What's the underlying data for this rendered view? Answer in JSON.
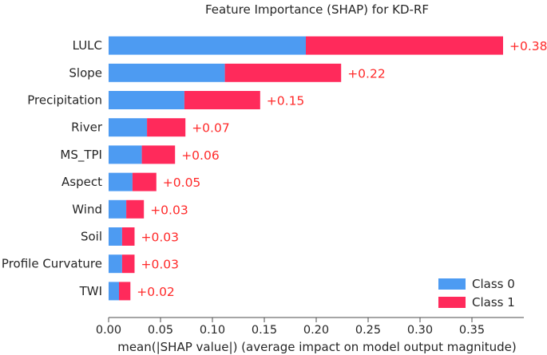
{
  "chart_data": {
    "type": "bar",
    "orientation": "horizontal",
    "stacked": true,
    "title": "Feature Importance (SHAP) for KD-RF",
    "xlabel": "mean(|SHAP value|) (average impact on model output magnitude)",
    "ylabel": "",
    "xlim": [
      0,
      0.4
    ],
    "xticks": [
      "0.00",
      "0.05",
      "0.10",
      "0.15",
      "0.20",
      "0.25",
      "0.30",
      "0.35"
    ],
    "categories": [
      "LULC",
      "Slope",
      "Precipitation",
      "River",
      "MS_TPI",
      "Aspect",
      "Wind",
      "Soil",
      "Profile Curvature",
      "TWI"
    ],
    "series": [
      {
        "name": "Class 0",
        "color": "#4d9bf2",
        "values": [
          0.19,
          0.112,
          0.073,
          0.037,
          0.032,
          0.023,
          0.017,
          0.013,
          0.013,
          0.01
        ]
      },
      {
        "name": "Class 1",
        "color": "#ff2a5b",
        "values": [
          0.19,
          0.112,
          0.073,
          0.037,
          0.032,
          0.023,
          0.017,
          0.012,
          0.012,
          0.011
        ]
      }
    ],
    "data_labels": [
      "+0.38",
      "+0.22",
      "+0.15",
      "+0.07",
      "+0.06",
      "+0.05",
      "+0.03",
      "+0.03",
      "+0.03",
      "+0.02"
    ],
    "data_label_color": "#ff2a2a",
    "legend": [
      "Class 0",
      "Class 1"
    ],
    "legend_position": "lower-right",
    "grid": false
  }
}
